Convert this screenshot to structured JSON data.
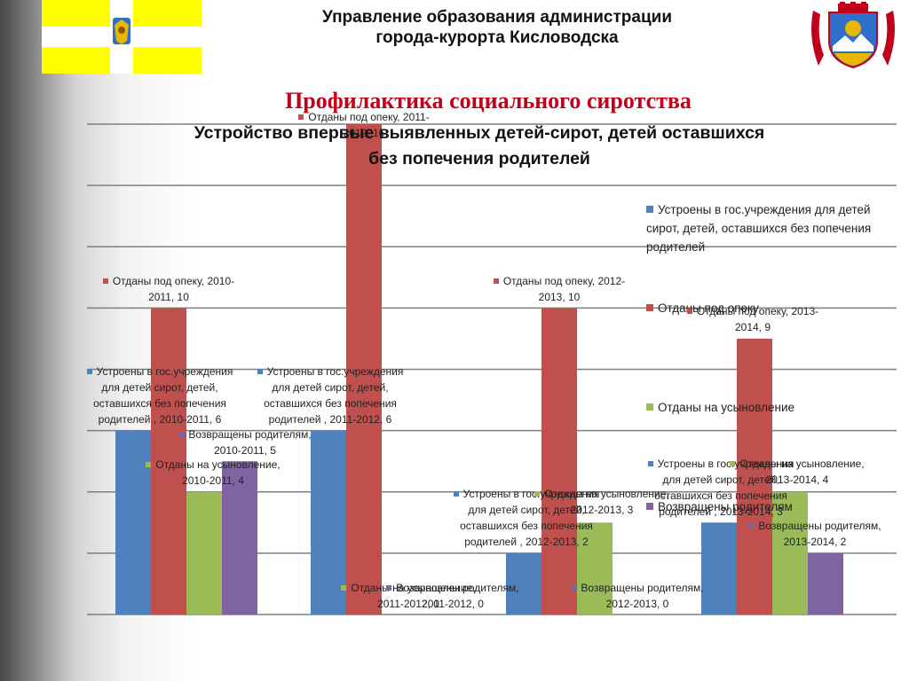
{
  "header": {
    "line1": "Управление образования администрации",
    "line2": "города-курорта Кисловодска",
    "subtitle": "Профилактика социального сиротства"
  },
  "colors": {
    "series": [
      "#4f81bd",
      "#c0504d",
      "#9bbb59",
      "#8064a2"
    ],
    "flag_yellow": "#ffff00",
    "flag_white": "#ffffff",
    "coat_red": "#c0001a",
    "coat_blue": "#2f6fc9",
    "coat_gold": "#e8b800",
    "subtitle": "#c0001a"
  },
  "icons": {
    "flag": "stavropol-flag-icon",
    "coat": "kislovodsk-coat-of-arms-icon"
  },
  "chart_data": {
    "type": "bar",
    "title": "Устройство впервые выявленных детей-сирот, детей оставшихся без попечения родителей",
    "title_lines": [
      "Устройство впервые выявленных детей-сирот, детей оставшихся",
      "без попечения родителей"
    ],
    "categories": [
      "2010-2011",
      "2011-2012",
      "2012-2013",
      "2013-2014"
    ],
    "series": [
      {
        "name": "Устроены в гос.учреждения для детей сирот, детей, оставшихся без попечения родителей",
        "values": [
          6,
          6,
          2,
          3
        ]
      },
      {
        "name": "Отданы под опеку",
        "values": [
          10,
          16,
          10,
          9
        ]
      },
      {
        "name": "Отданы на усыновление",
        "values": [
          4,
          0,
          3,
          4
        ]
      },
      {
        "name": "Возвращены родителям",
        "values": [
          5,
          0,
          0,
          2
        ]
      }
    ],
    "ylim": [
      0,
      16
    ],
    "grid": true,
    "legend_position": "right",
    "data_labels": [
      {
        "series": 0,
        "category": 0,
        "lines": [
          "Устроены в гос.учреждения",
          "для детей сирот, детей,",
          "оставшихся  без попечения",
          "родителей , 2010-2011, 6"
        ]
      },
      {
        "series": 0,
        "category": 1,
        "lines": [
          "Устроены в гос.учреждения",
          "для детей сирот, детей,",
          "оставшихся  без попечения",
          "родителей , 2011-2012, 6"
        ]
      },
      {
        "series": 0,
        "category": 2,
        "lines": [
          "Устроены в гос.учреждения",
          "для детей сирот, детей,",
          "оставшихся  без попечения",
          "родителей , 2012-2013, 2"
        ]
      },
      {
        "series": 0,
        "category": 3,
        "lines": [
          "Устроены в гос.учреждения",
          "для детей сирот, детей,",
          "оставшихся  без попечения",
          "родителей , 2013-2014, 3"
        ]
      },
      {
        "series": 1,
        "category": 0,
        "lines": [
          "Отданы под опеку, 2010-",
          "2011, 10"
        ]
      },
      {
        "series": 1,
        "category": 1,
        "lines": [
          "Отданы под опеку, 2011-",
          "2012, 16"
        ]
      },
      {
        "series": 1,
        "category": 2,
        "lines": [
          "Отданы под опеку, 2012-",
          "2013, 10"
        ]
      },
      {
        "series": 1,
        "category": 3,
        "lines": [
          "Отданы под опеку, 2013-",
          "2014, 9"
        ]
      },
      {
        "series": 2,
        "category": 0,
        "lines": [
          "Отданы на усыновление,",
          "2010-2011, 4"
        ]
      },
      {
        "series": 2,
        "category": 1,
        "lines": [
          "Отданы на усыновление,",
          "2011-2012, 0"
        ]
      },
      {
        "series": 2,
        "category": 2,
        "lines": [
          "Отданы на усыновление,",
          "2012-2013, 3"
        ]
      },
      {
        "series": 2,
        "category": 3,
        "lines": [
          "Отданы на усыновление,",
          "2013-2014, 4"
        ]
      },
      {
        "series": 3,
        "category": 0,
        "lines": [
          "Возвращены родителям,",
          "2010-2011, 5"
        ]
      },
      {
        "series": 3,
        "category": 1,
        "lines": [
          "Возвращены родителям,",
          "2011-2012, 0"
        ]
      },
      {
        "series": 3,
        "category": 2,
        "lines": [
          "Возвращены родителям,",
          "2012-2013, 0"
        ]
      },
      {
        "series": 3,
        "category": 3,
        "lines": [
          "Возвращены родителям,",
          "2013-2014, 2"
        ]
      }
    ]
  },
  "legend": [
    "Устроены в гос.учреждения для детей сирот, детей, оставшихся без попечения родителей",
    "Отданы под опеку",
    "Отданы на усыновление",
    "Возвращены родителям"
  ]
}
